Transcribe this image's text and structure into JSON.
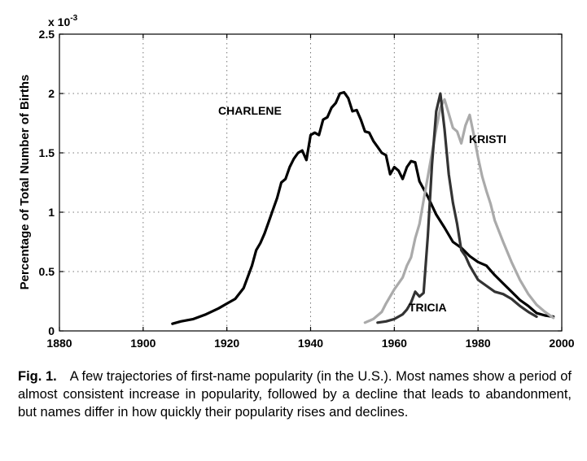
{
  "chart_data": {
    "type": "line",
    "ylabel": "Percentage of Total Number of Births",
    "y_exponent_label": "x 10",
    "y_exponent_power": "-3",
    "xlim": [
      1880,
      2000
    ],
    "ylim": [
      0,
      0.0025
    ],
    "x_ticks": [
      1880,
      1900,
      1920,
      1940,
      1960,
      1980,
      2000
    ],
    "y_ticks": [
      0,
      0.0005,
      0.001,
      0.0015,
      0.002,
      0.0025
    ],
    "y_tick_labels": [
      "0",
      "0.5",
      "1",
      "1.5",
      "2",
      "2.5"
    ],
    "grid": true,
    "series": [
      {
        "name": "CHARLENE",
        "color": "#000000",
        "x": [
          1907,
          1909,
          1912,
          1915,
          1918,
          1920,
          1922,
          1924,
          1926,
          1927,
          1928,
          1929,
          1930,
          1931,
          1932,
          1933,
          1934,
          1935,
          1936,
          1937,
          1938,
          1939,
          1940,
          1941,
          1942,
          1943,
          1944,
          1945,
          1946,
          1947,
          1948,
          1949,
          1950,
          1951,
          1952,
          1953,
          1954,
          1955,
          1956,
          1957,
          1958,
          1959,
          1960,
          1961,
          1962,
          1963,
          1964,
          1965,
          1966,
          1968,
          1970,
          1972,
          1974,
          1976,
          1978,
          1980,
          1982,
          1984,
          1986,
          1988,
          1990,
          1992,
          1994,
          1996,
          1998
        ],
        "y": [
          6e-05,
          8e-05,
          0.0001,
          0.00014,
          0.00019,
          0.00023,
          0.00027,
          0.00036,
          0.00055,
          0.00068,
          0.00074,
          0.00082,
          0.00092,
          0.00102,
          0.00112,
          0.00125,
          0.00128,
          0.00138,
          0.00145,
          0.0015,
          0.00152,
          0.00144,
          0.00165,
          0.00167,
          0.00165,
          0.00178,
          0.0018,
          0.00188,
          0.00192,
          0.002,
          0.00201,
          0.00196,
          0.00185,
          0.00186,
          0.00178,
          0.00168,
          0.00167,
          0.0016,
          0.00155,
          0.0015,
          0.00148,
          0.00132,
          0.00138,
          0.00135,
          0.00128,
          0.00138,
          0.00143,
          0.00142,
          0.00126,
          0.00113,
          0.00098,
          0.00087,
          0.00075,
          0.0007,
          0.00063,
          0.00058,
          0.00055,
          0.00047,
          0.0004,
          0.00033,
          0.00026,
          0.00021,
          0.00015,
          0.00013,
          0.00012
        ]
      },
      {
        "name": "KRISTI",
        "color": "#aaaaaa",
        "x": [
          1953,
          1955,
          1957,
          1958,
          1960,
          1962,
          1963,
          1964,
          1965,
          1966,
          1967,
          1968,
          1969,
          1970,
          1971,
          1972,
          1973,
          1974,
          1975,
          1976,
          1977,
          1978,
          1979,
          1980,
          1981,
          1982,
          1983,
          1984,
          1986,
          1988,
          1990,
          1992,
          1994,
          1996,
          1998
        ],
        "y": [
          7e-05,
          0.0001,
          0.00016,
          0.00023,
          0.00035,
          0.00045,
          0.00055,
          0.00062,
          0.00078,
          0.0009,
          0.0011,
          0.0013,
          0.0015,
          0.0017,
          0.00188,
          0.00195,
          0.00183,
          0.00171,
          0.00168,
          0.00158,
          0.00173,
          0.00182,
          0.00165,
          0.00146,
          0.0013,
          0.00118,
          0.00107,
          0.00093,
          0.00075,
          0.00058,
          0.00043,
          0.00031,
          0.00022,
          0.00016,
          0.00011
        ]
      },
      {
        "name": "TRICIA",
        "color": "#333333",
        "x": [
          1956,
          1958,
          1960,
          1962,
          1963,
          1964,
          1965,
          1966,
          1967,
          1968,
          1969,
          1970,
          1971,
          1972,
          1973,
          1974,
          1975,
          1976,
          1977,
          1978,
          1980,
          1982,
          1984,
          1986,
          1988,
          1990,
          1992,
          1994
        ],
        "y": [
          7e-05,
          8e-05,
          0.0001,
          0.00014,
          0.00018,
          0.00024,
          0.00033,
          0.00029,
          0.00032,
          0.0008,
          0.0014,
          0.00185,
          0.002,
          0.0017,
          0.00132,
          0.00108,
          0.0009,
          0.00068,
          0.00063,
          0.00055,
          0.00043,
          0.00038,
          0.00033,
          0.00031,
          0.00027,
          0.00021,
          0.00016,
          0.00012
        ]
      }
    ]
  },
  "caption": {
    "figure_number": "Fig. 1.",
    "text": "A few trajectories of first-name popularity (in the U.S.). Most names show a period of almost consistent increase in popularity, followed by a decline that leads to abandonment, but names differ in how quickly their popularity rises and declines."
  }
}
